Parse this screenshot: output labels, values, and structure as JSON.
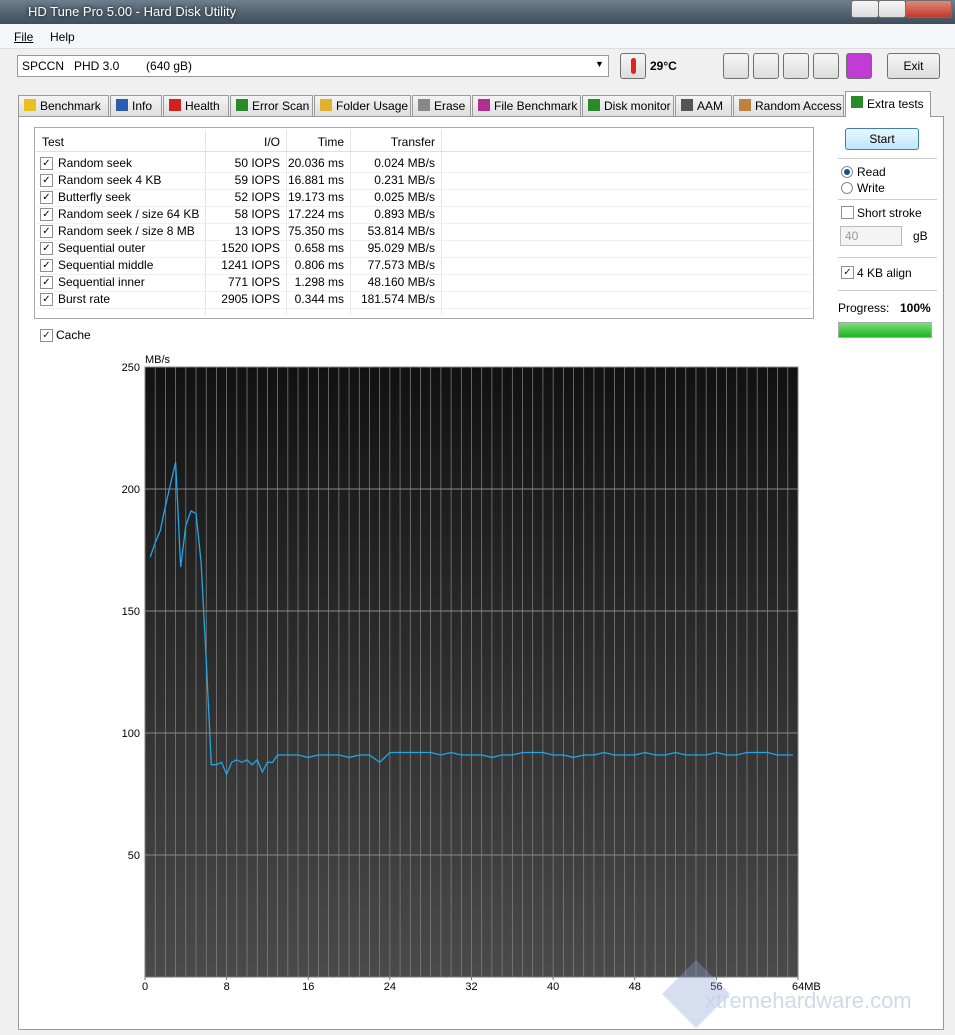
{
  "window": {
    "title": "HD Tune Pro 5.00 - Hard Disk Utility"
  },
  "menu": [
    "File",
    "Help"
  ],
  "drive": "SPCCN   PHD 3.0        (640 gB)",
  "temperature": "29°C",
  "exit": "Exit",
  "tabs": [
    "Benchmark",
    "Info",
    "Health",
    "Error Scan",
    "Folder Usage",
    "Erase",
    "File Benchmark",
    "Disk monitor",
    "AAM",
    "Random Access",
    "Extra tests"
  ],
  "active_tab": 10,
  "table": {
    "header": [
      "Test",
      "I/O",
      "Time",
      "Transfer"
    ],
    "rows": [
      [
        "Random seek",
        "50 IOPS",
        "20.036 ms",
        "0.024 MB/s"
      ],
      [
        "Random seek 4 KB",
        "59 IOPS",
        "16.881 ms",
        "0.231 MB/s"
      ],
      [
        "Butterfly seek",
        "52 IOPS",
        "19.173 ms",
        "0.025 MB/s"
      ],
      [
        "Random seek / size 64 KB",
        "58 IOPS",
        "17.224 ms",
        "0.893 MB/s"
      ],
      [
        "Random seek / size 8 MB",
        "13 IOPS",
        "75.350 ms",
        "53.814 MB/s"
      ],
      [
        "Sequential outer",
        "1520 IOPS",
        "0.658 ms",
        "95.029 MB/s"
      ],
      [
        "Sequential middle",
        "1241 IOPS",
        "0.806 ms",
        "77.573 MB/s"
      ],
      [
        "Sequential inner",
        "771 IOPS",
        "1.298 ms",
        "48.160 MB/s"
      ],
      [
        "Burst rate",
        "2905 IOPS",
        "0.344 ms",
        "181.574 MB/s"
      ]
    ],
    "checked": [
      true,
      true,
      true,
      true,
      true,
      true,
      true,
      true,
      true
    ]
  },
  "options": {
    "start": "Start",
    "read": "Read",
    "write": "Write",
    "mode": "read",
    "short_stroke": "Short stroke",
    "short_stroke_checked": false,
    "short_stroke_value": "40",
    "short_stroke_unit": "gB",
    "align": "4 KB align",
    "align_checked": true,
    "progress_label": "Progress:",
    "progress": {
      "value": 100,
      "label": "100%"
    }
  },
  "cache": {
    "label": "Cache",
    "checked": true
  },
  "chart": {
    "type": "line",
    "y_label": "MB/s",
    "color": "#22a6e8",
    "grid": true,
    "x": [
      0.5,
      1,
      1.5,
      2,
      2.5,
      3,
      3.5,
      4,
      4.5,
      5,
      5.5,
      6,
      6.5,
      7,
      7.5,
      8,
      8.5,
      9,
      9.5,
      10,
      10.5,
      11,
      11.5,
      12,
      12.5,
      13,
      14,
      15,
      16,
      17,
      18,
      19,
      20,
      21,
      22,
      23,
      24,
      25,
      26,
      27,
      28,
      29,
      30,
      31,
      32,
      33,
      34,
      35,
      36,
      37,
      38,
      39,
      40,
      41,
      42,
      43,
      44,
      45,
      46,
      47,
      48,
      49,
      50,
      51,
      52,
      53,
      54,
      55,
      56,
      57,
      58,
      59,
      60,
      61,
      62,
      63,
      63.5
    ],
    "values": [
      172,
      178,
      183,
      193,
      202,
      211,
      168,
      185,
      191,
      190,
      170,
      130,
      87,
      87,
      88,
      83,
      88,
      89,
      88,
      89,
      87,
      89,
      84,
      88,
      88,
      91,
      91,
      91,
      90,
      91,
      91,
      91,
      90,
      91,
      91,
      88,
      92,
      92,
      92,
      92,
      92,
      91,
      92,
      91,
      91,
      91,
      90,
      91,
      91,
      92,
      92,
      92,
      91,
      91,
      90,
      91,
      91,
      92,
      91,
      91,
      91,
      92,
      91,
      91,
      92,
      91,
      91,
      91,
      92,
      91,
      91,
      92,
      92,
      92,
      91,
      91,
      91
    ],
    "xlim": [
      0,
      64
    ],
    "ylim": [
      0,
      250
    ],
    "xticks": [
      0,
      8,
      16,
      24,
      32,
      40,
      48,
      56,
      {
        "value": 64,
        "label": "64MB"
      }
    ],
    "yticks": [
      50,
      100,
      150,
      200,
      250
    ]
  },
  "watermark": "xtremehardware.com"
}
